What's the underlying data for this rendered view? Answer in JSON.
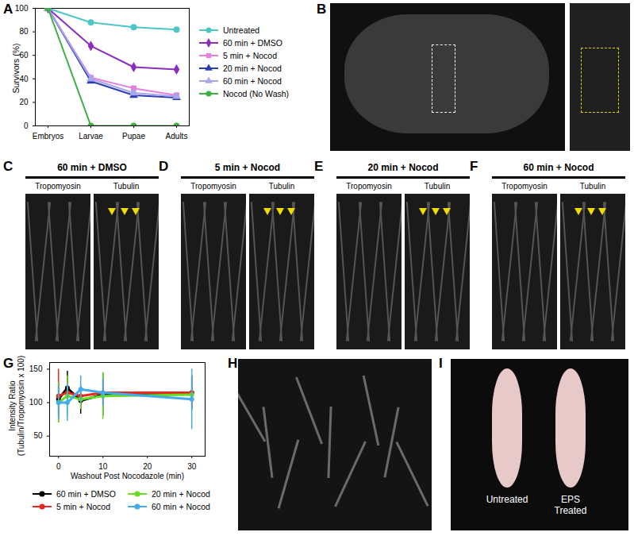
{
  "chart_data": [
    {
      "type": "line",
      "panel": "A",
      "y_label": "Survivors (%)",
      "categories": [
        "Embryos",
        "Larvae",
        "Pupae",
        "Adults"
      ],
      "ylim": [
        0,
        100
      ],
      "yticks": [
        0,
        20,
        40,
        60,
        80,
        100
      ],
      "legend": "right",
      "series": [
        {
          "name": "Untreated",
          "color": "#4cc6c6",
          "marker": "circle",
          "values": [
            100,
            88,
            84,
            82
          ]
        },
        {
          "name": "60 min + DMSO",
          "color": "#8b2dbd",
          "marker": "diamond",
          "values": [
            100,
            68,
            50,
            48
          ]
        },
        {
          "name": "5 min + Nocod",
          "color": "#e77fe0",
          "marker": "square",
          "values": [
            100,
            41,
            32,
            26
          ]
        },
        {
          "name": "20 min + Nocod",
          "color": "#2b3db3",
          "marker": "triangle",
          "values": [
            100,
            38,
            26,
            24
          ]
        },
        {
          "name": "60 min + Nocod",
          "color": "#a6a6ea",
          "marker": "triangle",
          "values": [
            100,
            40,
            28,
            25
          ]
        },
        {
          "name": "Nocod (No Wash)",
          "color": "#3cb043",
          "marker": "circle",
          "values": [
            100,
            0,
            0,
            0
          ]
        }
      ]
    },
    {
      "type": "line",
      "panel": "G",
      "y_label": "Intensity Ratio\n(Tubulin/Tropomyosin x 100)",
      "x_label": "Washout Post Nocodazole (min)",
      "x": [
        0,
        2,
        5,
        10,
        30
      ],
      "xlim": [
        -2,
        33
      ],
      "xticks": [
        0,
        10,
        20,
        30
      ],
      "ylim": [
        20,
        160
      ],
      "yticks": [
        50,
        100,
        150
      ],
      "legend": "bottom",
      "series": [
        {
          "name": "60 min + DMSO",
          "color": "#000000",
          "marker": "circle",
          "values": [
            105,
            122,
            103,
            112,
            115
          ],
          "error": [
            25,
            25,
            20,
            32,
            25
          ]
        },
        {
          "name": "5 min + Nocod",
          "color": "#e8281e",
          "marker": "circle",
          "values": [
            110,
            115,
            110,
            115,
            115
          ],
          "error": [
            40,
            20,
            15,
            20,
            20
          ]
        },
        {
          "name": "20 min + Nocod",
          "color": "#66dd22",
          "marker": "circle",
          "values": [
            100,
            110,
            105,
            110,
            112
          ],
          "error": [
            30,
            30,
            15,
            35,
            25
          ]
        },
        {
          "name": "60 min + Nocod",
          "color": "#44aaee",
          "marker": "circle",
          "values": [
            100,
            100,
            120,
            115,
            105
          ],
          "error": [
            25,
            28,
            20,
            20,
            45
          ]
        }
      ]
    }
  ],
  "panels": {
    "B": {
      "letter": "B"
    },
    "C": {
      "letter": "C",
      "title": "60 min + DMSO",
      "channels": [
        "Tropomyosin",
        "Tubulin"
      ]
    },
    "D": {
      "letter": "D",
      "title": "5 min + Nocod",
      "channels": [
        "Tropomyosin",
        "Tubulin"
      ]
    },
    "E": {
      "letter": "E",
      "title": "20 min + Nocod",
      "channels": [
        "Tropomyosin",
        "Tubulin"
      ]
    },
    "F": {
      "letter": "F",
      "title": "60 min + Nocod",
      "channels": [
        "Tropomyosin",
        "Tubulin"
      ]
    },
    "H": {
      "letter": "H"
    },
    "I": {
      "letter": "I",
      "labels": [
        "Untreated",
        "EPS Treated"
      ]
    }
  }
}
